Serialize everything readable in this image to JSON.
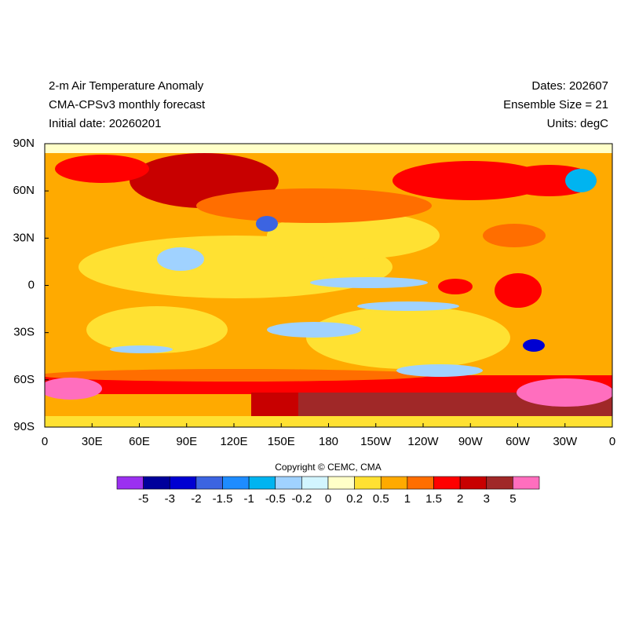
{
  "header": {
    "title": "2-m Air Temperature Anomaly",
    "subtitle": "CMA-CPSv3 monthly forecast",
    "initial_date": "Initial date: 20260201",
    "dates": "Dates: 202607",
    "ensemble": "Ensemble Size = 21",
    "units": "Units: degC"
  },
  "map": {
    "xlim": [
      0,
      360
    ],
    "ylim": [
      -90,
      90
    ],
    "xticks": [
      0,
      {
        "value": 30,
        "label": "30E"
      },
      {
        "value": 60,
        "label": "60E"
      },
      {
        "value": 90,
        "label": "90E"
      },
      {
        "value": 120,
        "label": "120E"
      },
      {
        "value": 150,
        "label": "150E"
      },
      180,
      {
        "value": 210,
        "label": "150W"
      },
      {
        "value": 240,
        "label": "120W"
      },
      {
        "value": 270,
        "label": "90W"
      },
      {
        "value": 300,
        "label": "60W"
      },
      {
        "value": 330,
        "label": "30W"
      },
      {
        "value": 360,
        "label": "0"
      }
    ],
    "yticks": [
      {
        "value": 90,
        "label": "90N"
      },
      {
        "value": 60,
        "label": "60N"
      },
      {
        "value": 30,
        "label": "30N"
      },
      0,
      {
        "value": -30,
        "label": "30S"
      },
      {
        "value": -60,
        "label": "60S"
      },
      {
        "value": -90,
        "label": "90S"
      }
    ]
  },
  "colorbar": {
    "colors": [
      "#9b30f0",
      "#00009b",
      "#0000d2",
      "#3c64e1",
      "#1e8cff",
      "#00b4f0",
      "#a0d2ff",
      "#d2f5ff",
      "#ffffc8",
      "#ffe132",
      "#ffaa00",
      "#ff6e00",
      "#ff0000",
      "#c80000",
      "#a02828",
      "#ff6ebe"
    ],
    "labels": [
      -5,
      -3,
      -2,
      -1.5,
      -1,
      -0.5,
      -0.2,
      0,
      0.2,
      0.5,
      1,
      1.5,
      2,
      3,
      5
    ]
  },
  "copyright": "Copyright © CEMC, CMA"
}
